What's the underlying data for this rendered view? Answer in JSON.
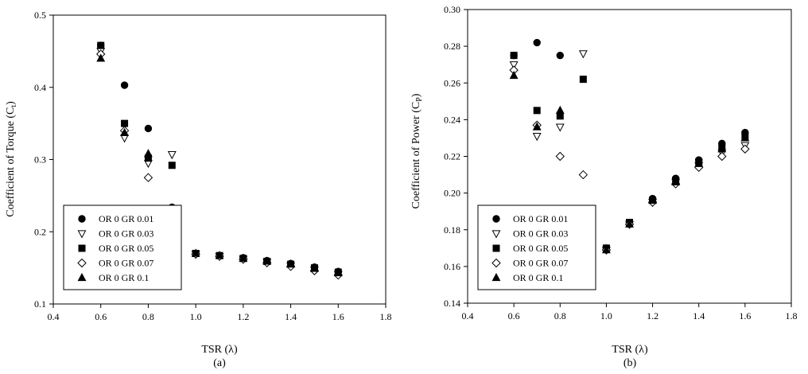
{
  "chart_data": [
    {
      "type": "scatter",
      "panel_label": "(a)",
      "xlabel": "TSR (λ)",
      "ylabel": {
        "main": "Coefficient of Torque (C",
        "sub": "t",
        "close": ")"
      },
      "xlim": [
        0.4,
        1.8
      ],
      "ylim": [
        0.1,
        0.5
      ],
      "xticks": [
        0.4,
        0.6,
        0.8,
        1.0,
        1.2,
        1.4,
        1.6,
        1.8
      ],
      "xtick_labels": [
        "0.4",
        "0.6",
        "0.8",
        "1.0",
        "1.2",
        "1.4",
        "1.6",
        "1.8"
      ],
      "yticks": [
        0.1,
        0.2,
        0.3,
        0.4,
        0.5
      ],
      "ytick_labels": [
        "0.1",
        "0.2",
        "0.3",
        "0.4",
        "0.5"
      ],
      "grid": false,
      "legend_position": "bottom-left",
      "series": [
        {
          "name": "OR 0 GR 0.01",
          "marker": "circle",
          "x": [
            0.6,
            0.7,
            0.8,
            0.9,
            1.0,
            1.1,
            1.2,
            1.3,
            1.4,
            1.5,
            1.6
          ],
          "y": [
            0.458,
            0.403,
            0.343,
            0.234,
            0.17,
            0.167,
            0.164,
            0.16,
            0.156,
            0.151,
            0.145
          ]
        },
        {
          "name": "OR 0 GR 0.03",
          "marker": "triangle-down-open",
          "x": [
            0.6,
            0.7,
            0.8,
            0.9,
            1.0,
            1.1,
            1.2,
            1.3,
            1.4,
            1.5,
            1.6
          ],
          "y": [
            0.45,
            0.33,
            0.295,
            0.307,
            0.169,
            0.166,
            0.162,
            0.158,
            0.153,
            0.147,
            0.141
          ]
        },
        {
          "name": "OR 0 GR 0.05",
          "marker": "square",
          "x": [
            0.6,
            0.7,
            0.8,
            0.9,
            1.0,
            1.1,
            1.2,
            1.3,
            1.4,
            1.5,
            1.6
          ],
          "y": [
            0.458,
            0.35,
            0.302,
            0.292,
            0.17,
            0.167,
            0.163,
            0.159,
            0.155,
            0.15,
            0.144
          ]
        },
        {
          "name": "OR 0 GR 0.07",
          "marker": "diamond-open",
          "x": [
            0.6,
            0.7,
            0.8,
            1.0,
            1.1,
            1.2,
            1.3,
            1.4,
            1.5,
            1.6
          ],
          "y": [
            0.446,
            0.34,
            0.275,
            0.169,
            0.166,
            0.162,
            0.157,
            0.152,
            0.146,
            0.14
          ]
        },
        {
          "name": "OR 0 GR 0.1",
          "marker": "triangle-up",
          "x": [
            0.6,
            0.7,
            0.8,
            1.0,
            1.1,
            1.2,
            1.3,
            1.4,
            1.5,
            1.6
          ],
          "y": [
            0.44,
            0.337,
            0.308,
            0.17,
            0.167,
            0.163,
            0.159,
            0.155,
            0.149,
            0.143
          ]
        }
      ]
    },
    {
      "type": "scatter",
      "panel_label": "(b)",
      "xlabel": "TSR (λ)",
      "ylabel": {
        "main": "Coefficient of Power (C",
        "sub": "P",
        "close": ")"
      },
      "xlim": [
        0.4,
        1.8
      ],
      "ylim": [
        0.14,
        0.3
      ],
      "xticks": [
        0.4,
        0.6,
        0.8,
        1.0,
        1.2,
        1.4,
        1.6,
        1.8
      ],
      "xtick_labels": [
        "0.4",
        "0.6",
        "0.8",
        "1.0",
        "1.2",
        "1.4",
        "1.6",
        "1.8"
      ],
      "yticks": [
        0.14,
        0.16,
        0.18,
        0.2,
        0.22,
        0.24,
        0.26,
        0.28,
        0.3
      ],
      "ytick_labels": [
        "0.14",
        "0.16",
        "0.18",
        "0.20",
        "0.22",
        "0.24",
        "0.26",
        "0.28",
        "0.30"
      ],
      "grid": false,
      "legend_position": "bottom-left",
      "series": [
        {
          "name": "OR 0 GR 0.01",
          "marker": "circle",
          "x": [
            0.6,
            0.7,
            0.8,
            1.0,
            1.1,
            1.2,
            1.3,
            1.4,
            1.5,
            1.6
          ],
          "y": [
            0.275,
            0.282,
            0.275,
            0.17,
            0.184,
            0.197,
            0.208,
            0.218,
            0.227,
            0.233
          ]
        },
        {
          "name": "OR 0 GR 0.03",
          "marker": "triangle-down-open",
          "x": [
            0.6,
            0.7,
            0.8,
            0.9,
            1.0,
            1.1,
            1.2,
            1.3,
            1.4,
            1.5,
            1.6
          ],
          "y": [
            0.27,
            0.231,
            0.236,
            0.276,
            0.169,
            0.183,
            0.195,
            0.206,
            0.215,
            0.222,
            0.226
          ]
        },
        {
          "name": "OR 0 GR 0.05",
          "marker": "square",
          "x": [
            0.6,
            0.7,
            0.8,
            0.9,
            1.0,
            1.1,
            1.2,
            1.3,
            1.4,
            1.5,
            1.6
          ],
          "y": [
            0.275,
            0.245,
            0.242,
            0.262,
            0.17,
            0.184,
            0.196,
            0.207,
            0.217,
            0.225,
            0.231
          ]
        },
        {
          "name": "OR 0 GR 0.07",
          "marker": "diamond-open",
          "x": [
            0.6,
            0.7,
            0.8,
            0.9,
            1.0,
            1.1,
            1.2,
            1.3,
            1.4,
            1.5,
            1.6
          ],
          "y": [
            0.267,
            0.237,
            0.22,
            0.21,
            0.169,
            0.183,
            0.195,
            0.205,
            0.214,
            0.22,
            0.224
          ]
        },
        {
          "name": "OR 0 GR 0.1",
          "marker": "triangle-up",
          "x": [
            0.6,
            0.7,
            0.8,
            1.0,
            1.1,
            1.2,
            1.3,
            1.4,
            1.5,
            1.6
          ],
          "y": [
            0.264,
            0.236,
            0.245,
            0.169,
            0.183,
            0.196,
            0.206,
            0.216,
            0.224,
            0.23
          ]
        }
      ]
    }
  ]
}
